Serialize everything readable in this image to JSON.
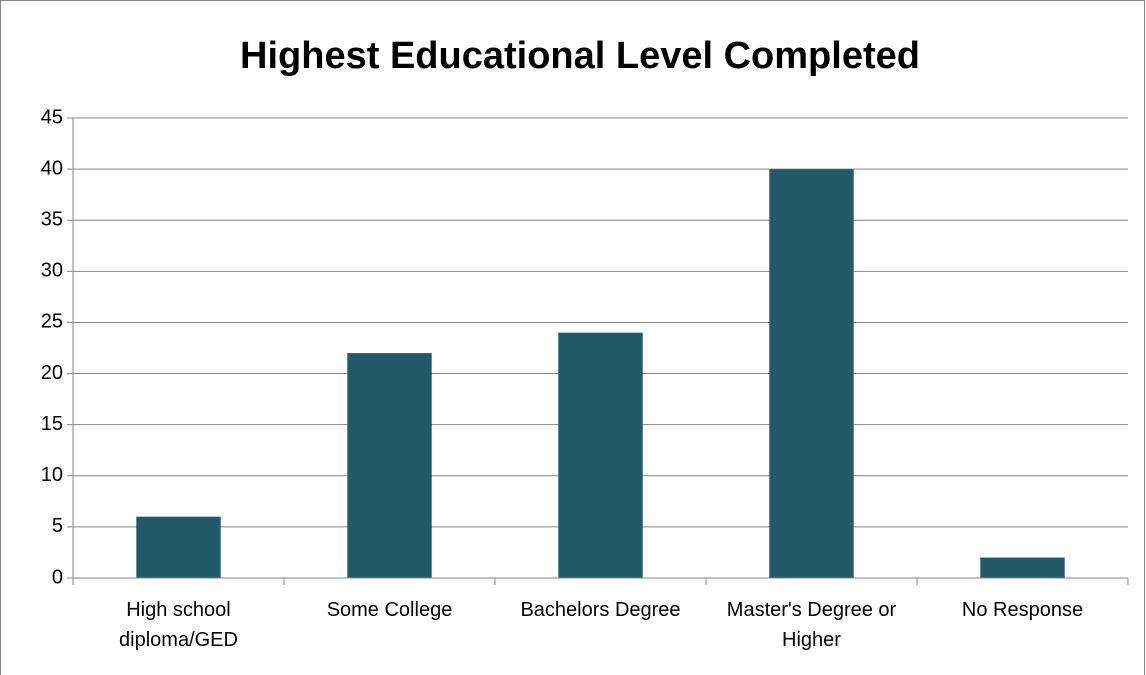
{
  "chart_data": {
    "type": "bar",
    "title": "Highest Educational Level Completed",
    "categories": [
      "High school diploma/GED",
      "Some College",
      "Bachelors Degree",
      "Master's Degree or Higher",
      "No Response"
    ],
    "values": [
      6,
      22,
      24,
      40,
      2
    ],
    "color": "#235a69",
    "ylim": [
      0,
      45
    ],
    "yticks": [
      0,
      5,
      10,
      15,
      20,
      25,
      30,
      35,
      40,
      45
    ],
    "grid": true
  }
}
